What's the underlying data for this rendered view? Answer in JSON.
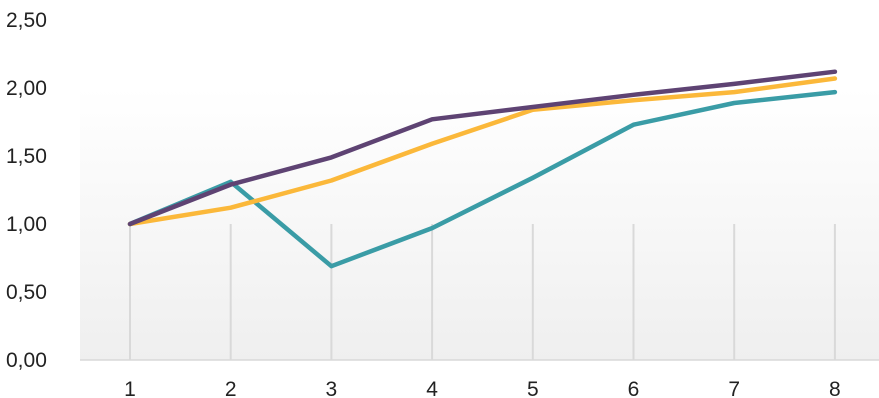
{
  "chart_data": {
    "type": "line",
    "title": "",
    "xlabel": "",
    "ylabel": "",
    "x": [
      "1",
      "2",
      "3",
      "4",
      "5",
      "6",
      "7",
      "8"
    ],
    "ylim": [
      0,
      2.5
    ],
    "yticks": [
      "0,00",
      "0,50",
      "1,00",
      "1,50",
      "2,00",
      "2,50"
    ],
    "ytick_values": [
      0,
      0.5,
      1.0,
      1.5,
      2.0,
      2.5
    ],
    "grid": "vertical",
    "legend": "none",
    "series": [
      {
        "color": "#3a9ca6",
        "values": [
          1.0,
          1.31,
          0.69,
          0.97,
          1.34,
          1.73,
          1.89,
          1.97
        ]
      },
      {
        "color": "#fbb83a",
        "values": [
          1.0,
          1.12,
          1.32,
          1.59,
          1.84,
          1.91,
          1.97,
          2.07
        ]
      },
      {
        "color": "#5e4373",
        "values": [
          1.0,
          1.29,
          1.49,
          1.77,
          1.86,
          1.95,
          2.03,
          2.12
        ]
      }
    ]
  }
}
